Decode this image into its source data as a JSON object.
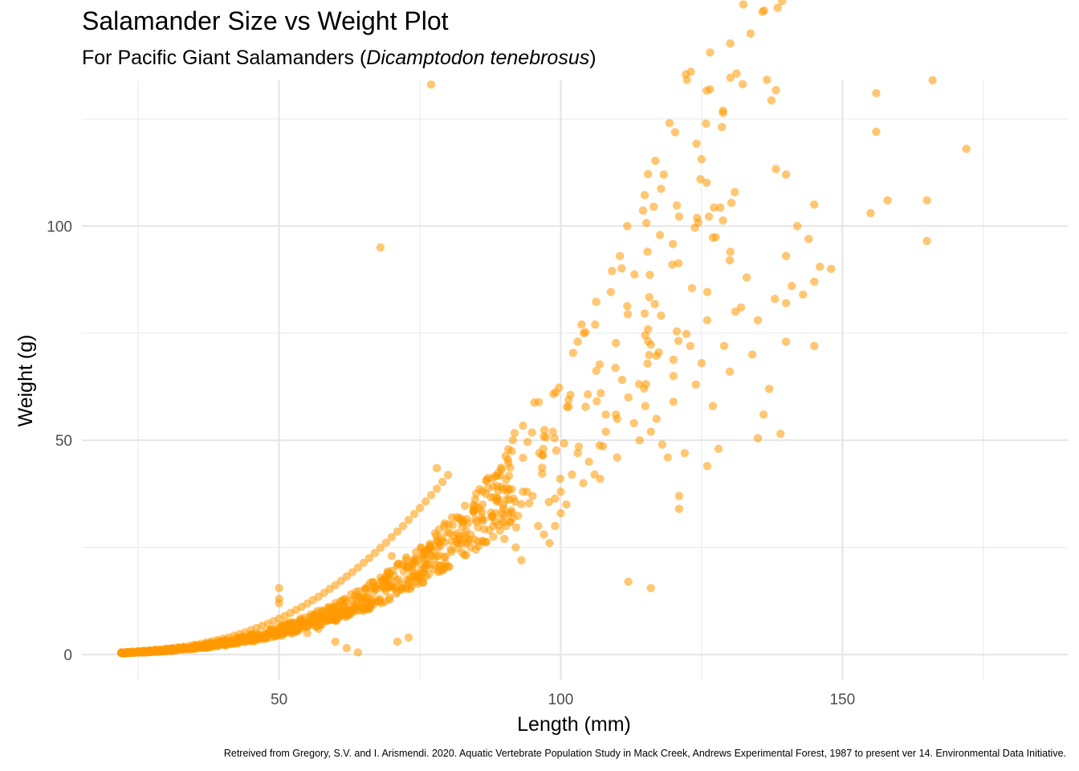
{
  "chart_data": {
    "type": "scatter",
    "title": "Salamander Size vs Weight Plot",
    "subtitle_prefix": "For Pacific Giant Salamanders (",
    "subtitle_species": "Dicamptodon tenebrosus",
    "subtitle_suffix": ")",
    "xlabel": "Length (mm)",
    "ylabel": "Weight (g)",
    "caption": "Retreived from Gregory, S.V. and I. Arismendi. 2020. Aquatic Vertebrate Population Study in Mack Creek, Andrews Experimental Forest, 1987 to present ver 14. Environmental Data Initiative.",
    "xlim": [
      15,
      190
    ],
    "ylim": [
      -6,
      134
    ],
    "x_ticks": [
      50,
      100,
      150
    ],
    "y_ticks": [
      0,
      50,
      100
    ],
    "grid": true,
    "legend": "none",
    "point_color": "#ff9900",
    "point_opacity": 0.55,
    "trend": "weight increases roughly as length cubed; dense cluster from 22–90 mm under 30 g",
    "points": [
      [
        22,
        0.5
      ],
      [
        23,
        0.6
      ],
      [
        24,
        0.7
      ],
      [
        25,
        0.8
      ],
      [
        26,
        0.9
      ],
      [
        27,
        1.0
      ],
      [
        28,
        1.1
      ],
      [
        29,
        1.2
      ],
      [
        30,
        1.4
      ],
      [
        31,
        1.5
      ],
      [
        32,
        1.7
      ],
      [
        33,
        1.8
      ],
      [
        34,
        2.0
      ],
      [
        35,
        2.3
      ],
      [
        36,
        2.5
      ],
      [
        37,
        2.8
      ],
      [
        38,
        3.1
      ],
      [
        39,
        3.4
      ],
      [
        40,
        3.7
      ],
      [
        41,
        4.0
      ],
      [
        42,
        4.4
      ],
      [
        43,
        4.8
      ],
      [
        44,
        5.2
      ],
      [
        45,
        5.7
      ],
      [
        46,
        6.2
      ],
      [
        47,
        6.7
      ],
      [
        48,
        7.2
      ],
      [
        49,
        7.8
      ],
      [
        50,
        8.4
      ],
      [
        51,
        9.0
      ],
      [
        52,
        9.7
      ],
      [
        53,
        10.4
      ],
      [
        54,
        11.1
      ],
      [
        55,
        11.9
      ],
      [
        56,
        12.7
      ],
      [
        57,
        13.5
      ],
      [
        58,
        14.4
      ],
      [
        59,
        15.3
      ],
      [
        60,
        16.2
      ],
      [
        61,
        17.2
      ],
      [
        62,
        18.2
      ],
      [
        63,
        19.2
      ],
      [
        64,
        20.3
      ],
      [
        65,
        21.4
      ],
      [
        66,
        22.5
      ],
      [
        67,
        23.7
      ],
      [
        68,
        24.9
      ],
      [
        69,
        26.1
      ],
      [
        70,
        27.4
      ],
      [
        71,
        28.7
      ],
      [
        72,
        30.0
      ],
      [
        73,
        31.4
      ],
      [
        74,
        32.8
      ],
      [
        75,
        34.2
      ],
      [
        76,
        35.7
      ],
      [
        77,
        37.2
      ],
      [
        78,
        38.7
      ],
      [
        79,
        40.3
      ],
      [
        80,
        41.9
      ],
      [
        50,
        15.5
      ],
      [
        50,
        13
      ],
      [
        50,
        12
      ],
      [
        55,
        5
      ],
      [
        57,
        6
      ],
      [
        60,
        3
      ],
      [
        62,
        1.5
      ],
      [
        64,
        0.5
      ],
      [
        68,
        18
      ],
      [
        70,
        23
      ],
      [
        71,
        3
      ],
      [
        73,
        4
      ],
      [
        77,
        133
      ],
      [
        78,
        43.5
      ],
      [
        68,
        95
      ],
      [
        85,
        31
      ],
      [
        84,
        28
      ],
      [
        86,
        32
      ],
      [
        88,
        30
      ],
      [
        90,
        27
      ],
      [
        92,
        25
      ],
      [
        93,
        22
      ],
      [
        94,
        38
      ],
      [
        95,
        37
      ],
      [
        96,
        30
      ],
      [
        97,
        28
      ],
      [
        98,
        26
      ],
      [
        99,
        30
      ],
      [
        100,
        38
      ],
      [
        100,
        33
      ],
      [
        101,
        35
      ],
      [
        102,
        42
      ],
      [
        103,
        47
      ],
      [
        104,
        40
      ],
      [
        105,
        45
      ],
      [
        106,
        42
      ],
      [
        107,
        41
      ],
      [
        108,
        56
      ],
      [
        108,
        52
      ],
      [
        110,
        55
      ],
      [
        110,
        46
      ],
      [
        112,
        17
      ],
      [
        112,
        60
      ],
      [
        113,
        54
      ],
      [
        114,
        50
      ],
      [
        115,
        74.5
      ],
      [
        115,
        58
      ],
      [
        116,
        15.5
      ],
      [
        116,
        52
      ],
      [
        117,
        55
      ],
      [
        118,
        49
      ],
      [
        119,
        46
      ],
      [
        120,
        65
      ],
      [
        120,
        59
      ],
      [
        121,
        34
      ],
      [
        121,
        37
      ],
      [
        122,
        47
      ],
      [
        123,
        72
      ],
      [
        124,
        63
      ],
      [
        125,
        68
      ],
      [
        126,
        78
      ],
      [
        126,
        44
      ],
      [
        127,
        58
      ],
      [
        128,
        48
      ],
      [
        129,
        72
      ],
      [
        130,
        92
      ],
      [
        130,
        66
      ],
      [
        131,
        80
      ],
      [
        132,
        81
      ],
      [
        133,
        88
      ],
      [
        134,
        70
      ],
      [
        135,
        78
      ],
      [
        135,
        50.5
      ],
      [
        136,
        56
      ],
      [
        137,
        62
      ],
      [
        138,
        83
      ],
      [
        139,
        51.5
      ],
      [
        140,
        73
      ],
      [
        140,
        82
      ],
      [
        140,
        93
      ],
      [
        140,
        112
      ],
      [
        141,
        86
      ],
      [
        142,
        100
      ],
      [
        143,
        84
      ],
      [
        144,
        97
      ],
      [
        145,
        87
      ],
      [
        145,
        105
      ],
      [
        145,
        72
      ],
      [
        146,
        90.5
      ],
      [
        148,
        90
      ],
      [
        155,
        103
      ],
      [
        156,
        131
      ],
      [
        156,
        122
      ],
      [
        158,
        106
      ],
      [
        165,
        106
      ],
      [
        165,
        96.5
      ],
      [
        166,
        134
      ],
      [
        172,
        118
      ]
    ]
  }
}
